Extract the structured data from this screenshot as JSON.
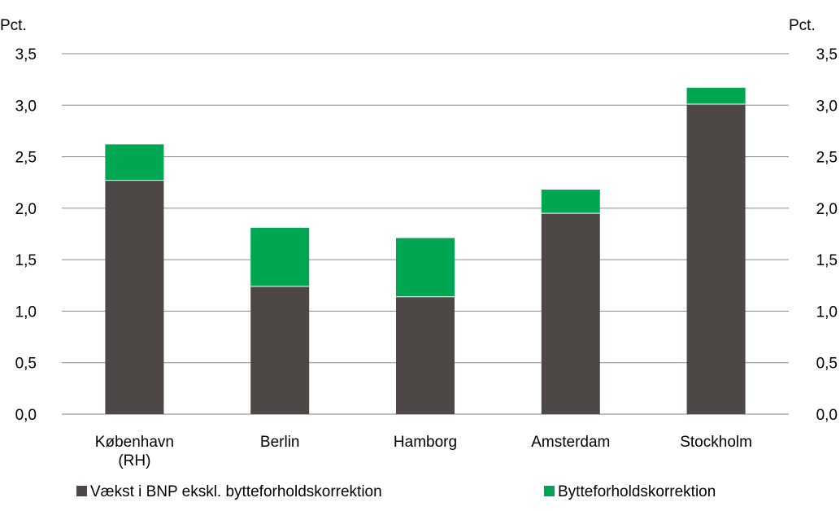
{
  "chart_data": {
    "type": "bar",
    "stacked": true,
    "categories": [
      "København\n(RH)",
      "Berlin",
      "Hamborg",
      "Amsterdam",
      "Stockholm"
    ],
    "series": [
      {
        "name": "Vækst i BNP ekskl. bytteforholdskorrektion",
        "color": "#4d4845",
        "values": [
          2.27,
          1.24,
          1.14,
          1.95,
          3.01
        ]
      },
      {
        "name": "Bytteforholdskorrektion",
        "color": "#00a651",
        "values": [
          0.35,
          0.57,
          0.57,
          0.23,
          0.16
        ]
      }
    ],
    "ylabel_left": "Pct.",
    "ylabel_right": "Pct.",
    "ylim": [
      0,
      3.5
    ],
    "yticks": [
      "0,0",
      "0,5",
      "1,0",
      "1,5",
      "2,0",
      "2,5",
      "3,0",
      "3,5"
    ],
    "grid": true,
    "legend_position": "bottom"
  }
}
